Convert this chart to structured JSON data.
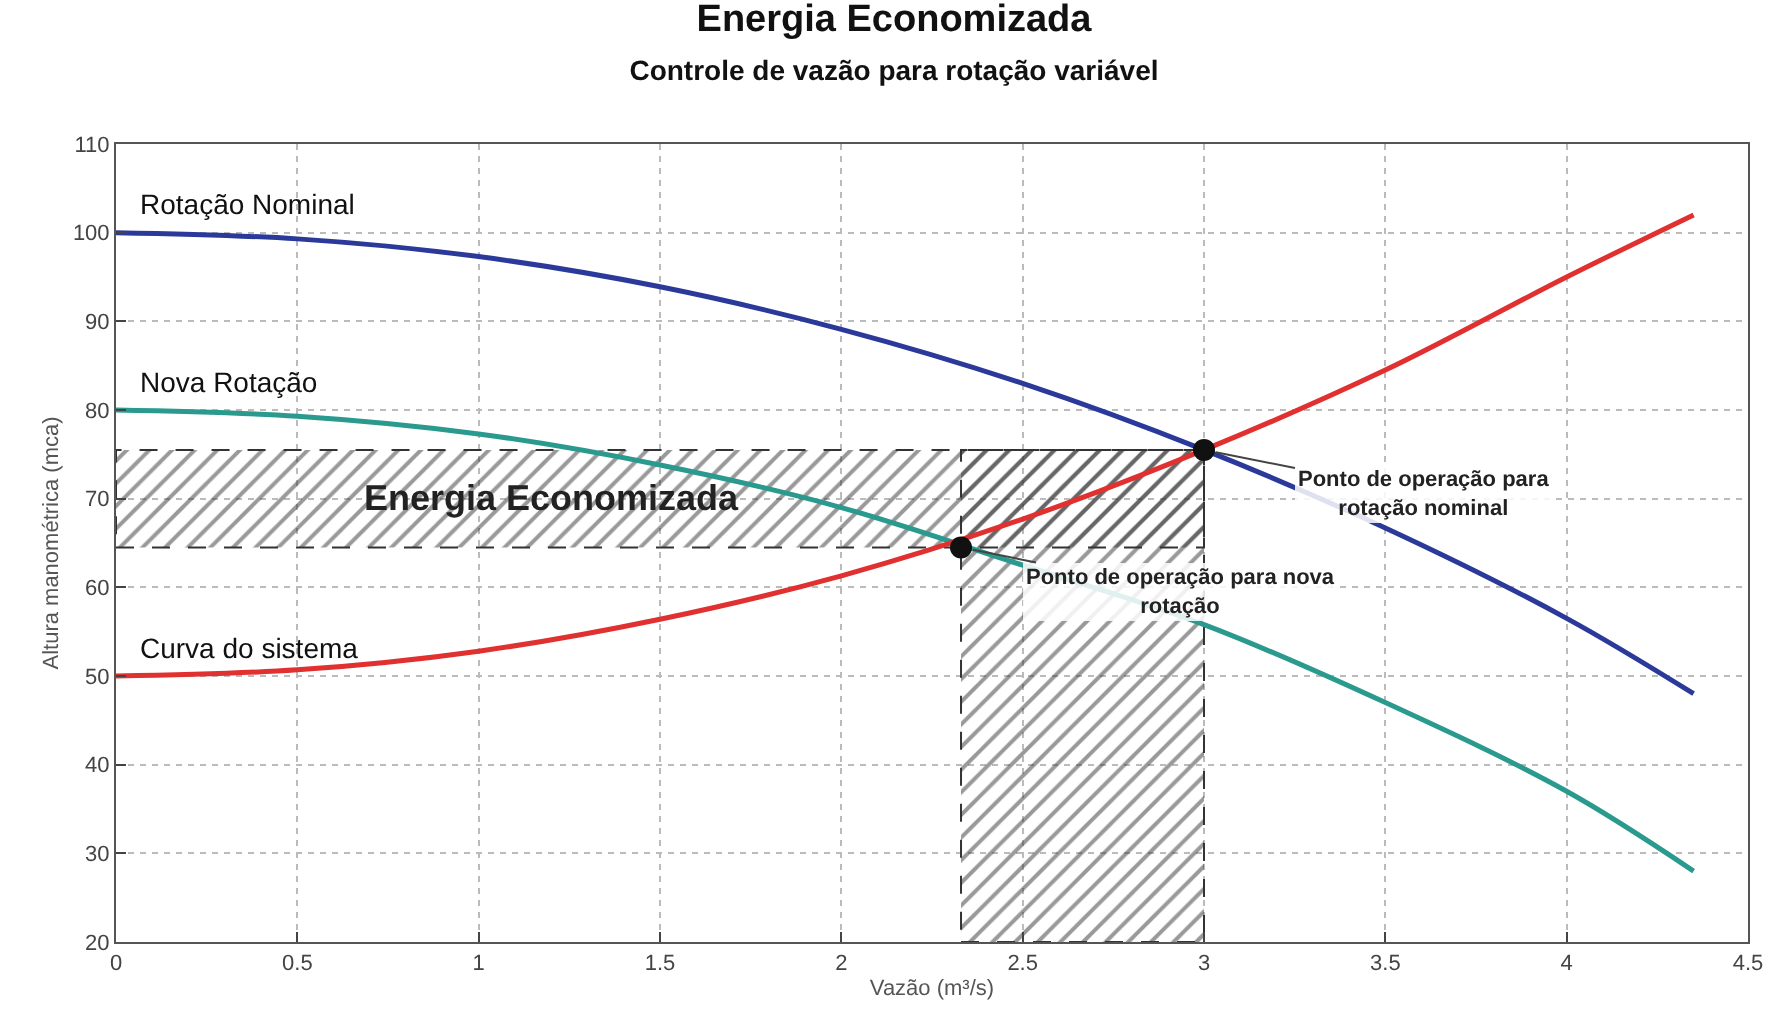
{
  "chart_data": {
    "type": "line",
    "title": "Energia Economizada",
    "subtitle": "Controle de vazão para rotação variável",
    "xlabel": "Vazão (m³/s)",
    "ylabel": "Altura manométrica (mca)",
    "x": [
      0,
      0.5,
      1,
      1.5,
      2,
      2.5,
      3,
      3.5,
      4,
      4.35
    ],
    "series": [
      {
        "name": "Rotação Nominal",
        "color": "#2b3a9a",
        "values": [
          100,
          99.3,
          97.3,
          93.9,
          89.1,
          83,
          75.5,
          66.7,
          56.5,
          48
        ]
      },
      {
        "name": "Nova Rotação",
        "color": "#2a9a8e",
        "values": [
          80,
          79.3,
          77.3,
          73.8,
          69,
          62.5,
          55.8,
          47,
          37,
          28
        ]
      },
      {
        "name": "Curva do sistema",
        "color": "#e03030",
        "values": [
          50,
          50.7,
          52.8,
          56.4,
          61.3,
          67.7,
          75.5,
          84.5,
          95,
          102
        ]
      },
      {
        "type": "scatter",
        "color": "#111111",
        "x": [
          3,
          2.33
        ],
        "values": [
          75.5,
          64.5
        ]
      }
    ],
    "bands": [
      {
        "axis": "y",
        "from": 64.5,
        "to": 75.5,
        "label": "Energia Economizada",
        "color": "#333333"
      },
      {
        "axis": "x",
        "from": 2.33,
        "to": 3,
        "color": "#333333"
      }
    ],
    "annotations": [
      {
        "text": "Ponto de operação para\nrotação nominal",
        "x": 3,
        "y": 75.5
      },
      {
        "text": "Ponto de operação para nova\nrotação",
        "x": 2.33,
        "y": 64.5
      }
    ],
    "xlim": [
      0,
      4.5
    ],
    "xticks": [
      0,
      0.5,
      1,
      1.5,
      2,
      2.5,
      3,
      3.5,
      4,
      4.5
    ],
    "ylim": [
      20,
      110
    ],
    "yticks": [
      20,
      30,
      40,
      50,
      60,
      70,
      80,
      90,
      100,
      110
    ],
    "grid": true,
    "legend": false,
    "line_style": "solid"
  }
}
